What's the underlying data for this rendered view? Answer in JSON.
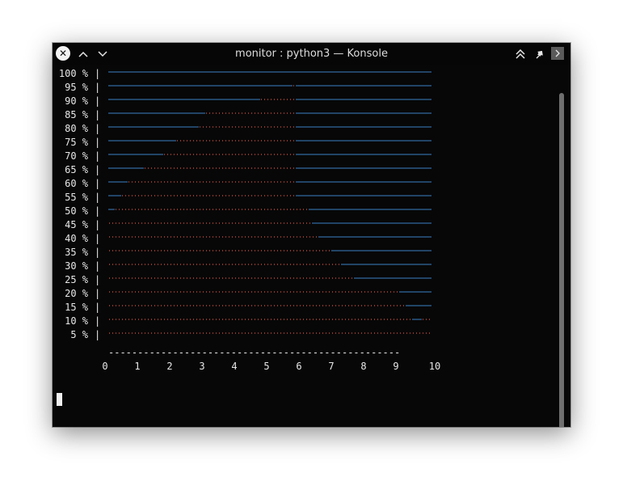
{
  "window": {
    "title": "monitor : python3 — Konsole",
    "close_icon": "✕",
    "up_icon": "⌃",
    "down_icon": "⌄",
    "keep_above_icon": "⏶",
    "pin_icon": "📌",
    "menu_icon": "›"
  },
  "colors": {
    "background": "#070707",
    "text": "#e8e8e8",
    "line": "#3b82c6",
    "dots": "#8a3a30"
  },
  "chart_data": {
    "type": "line",
    "title": "",
    "ylabels": [
      "100 %",
      "95 %",
      "90 %",
      "85 %",
      "80 %",
      "75 %",
      "70 %",
      "65 %",
      "60 %",
      "55 %",
      "50 %",
      "45 %",
      "40 %",
      "35 %",
      "30 %",
      "25 %",
      "20 %",
      "15 %",
      "10 %",
      "5 %"
    ],
    "y_axis_char": "|",
    "x_ticks": [
      "0",
      "1",
      "2",
      "3",
      "4",
      "5",
      "6",
      "7",
      "8",
      "9",
      "10"
    ],
    "xlim": [
      0,
      10
    ],
    "baseline_char": "-",
    "rows": [
      {
        "y": 100,
        "dots": []
      },
      {
        "y": 95,
        "dots": [
          [
            5.7,
            5.8
          ]
        ]
      },
      {
        "y": 90,
        "dots": [
          [
            4.7,
            5.8
          ]
        ]
      },
      {
        "y": 85,
        "dots": [
          [
            3.0,
            5.8
          ]
        ]
      },
      {
        "y": 80,
        "dots": [
          [
            2.8,
            5.8
          ]
        ]
      },
      {
        "y": 75,
        "dots": [
          [
            2.1,
            5.8
          ]
        ]
      },
      {
        "y": 70,
        "dots": [
          [
            1.7,
            5.8
          ]
        ]
      },
      {
        "y": 65,
        "dots": [
          [
            1.1,
            5.8
          ]
        ]
      },
      {
        "y": 60,
        "dots": [
          [
            0.6,
            5.8
          ]
        ]
      },
      {
        "y": 55,
        "dots": [
          [
            0.4,
            5.8
          ]
        ]
      },
      {
        "y": 50,
        "dots": [
          [
            0.2,
            6.2
          ]
        ]
      },
      {
        "y": 45,
        "dots": [
          [
            0.0,
            6.3
          ]
        ]
      },
      {
        "y": 40,
        "dots": [
          [
            0.0,
            6.5
          ]
        ]
      },
      {
        "y": 35,
        "dots": [
          [
            0.0,
            6.9
          ]
        ]
      },
      {
        "y": 30,
        "dots": [
          [
            0.0,
            7.2
          ]
        ]
      },
      {
        "y": 25,
        "dots": [
          [
            0.0,
            7.6
          ]
        ]
      },
      {
        "y": 20,
        "dots": [
          [
            0.0,
            9.0
          ]
        ]
      },
      {
        "y": 15,
        "dots": [
          [
            0.0,
            9.2
          ]
        ]
      },
      {
        "y": 10,
        "dots": [
          [
            0.0,
            9.4
          ],
          [
            9.7,
            10.0
          ]
        ]
      },
      {
        "y": 5,
        "dots": [
          [
            0.0,
            10.0
          ]
        ]
      }
    ]
  }
}
